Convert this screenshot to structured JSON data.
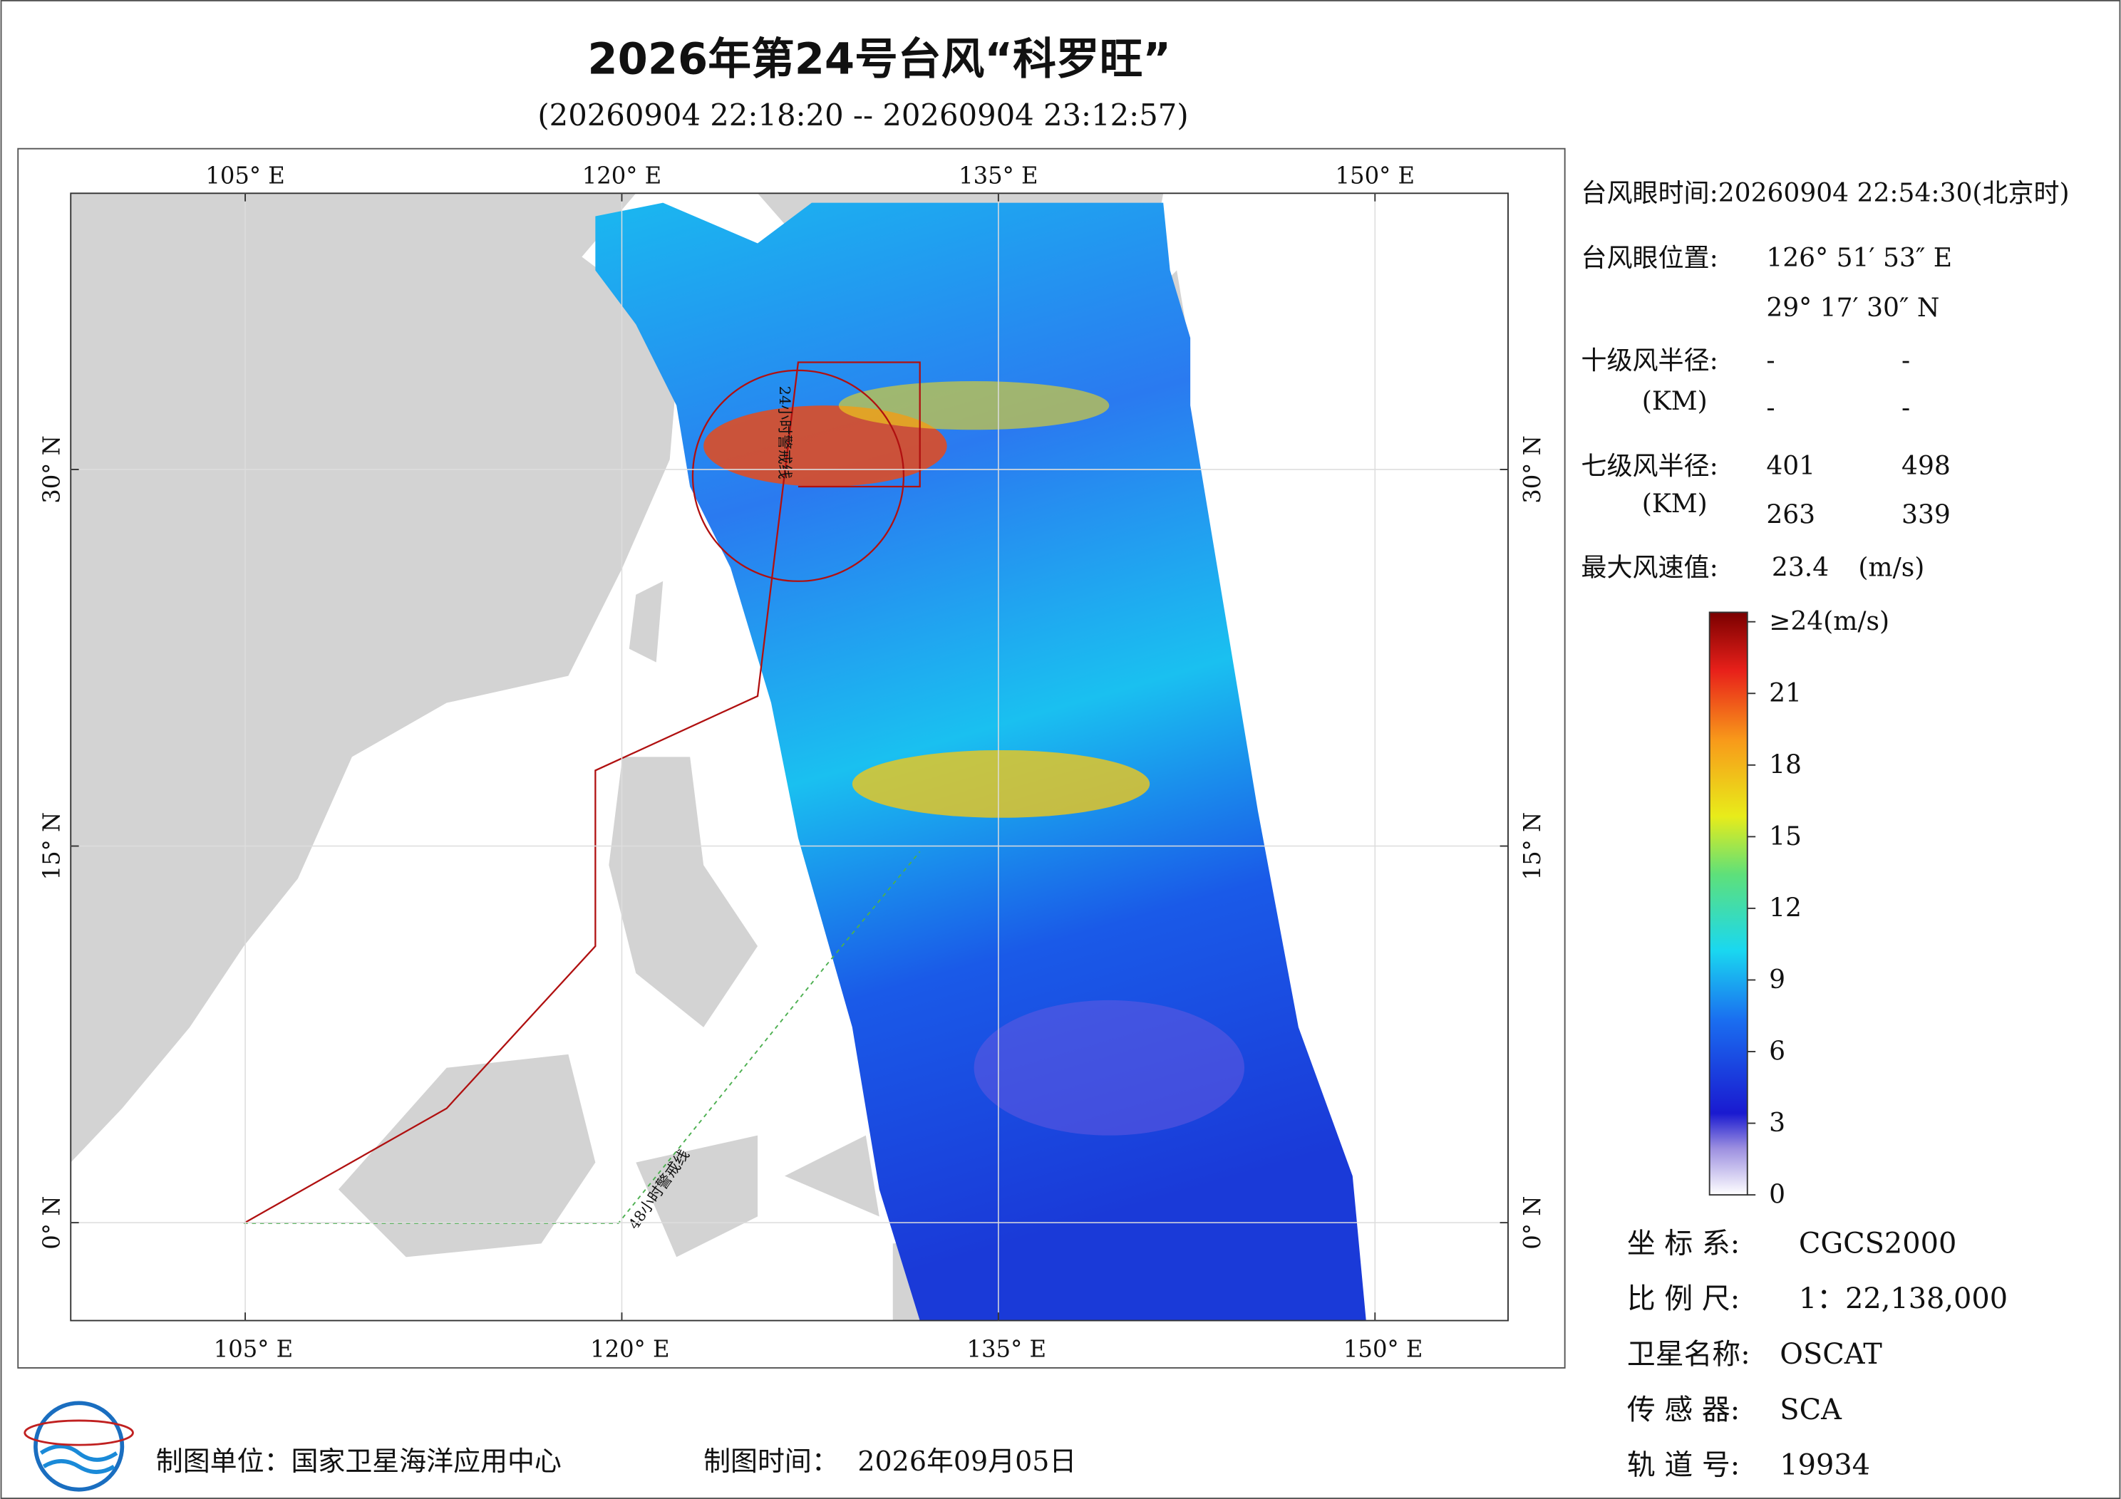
{
  "header": {
    "title": "2026年第24号台风“科罗旺”",
    "subtitle": "(20260904 22:18:20 -- 20260904 23:12:57)"
  },
  "map": {
    "xlim": [
      98.05,
      155.3
    ],
    "ylim": [
      -3.9,
      41
    ],
    "xticks": [
      {
        "value": 105,
        "label": "105° E"
      },
      {
        "value": 120,
        "label": "120° E"
      },
      {
        "value": 135,
        "label": "135° E"
      },
      {
        "value": 150,
        "label": "150° E"
      }
    ],
    "yticks": [
      {
        "value": 0,
        "label": "0° N"
      },
      {
        "value": 15,
        "label": "15° N"
      },
      {
        "value": 30,
        "label": "30° N"
      }
    ],
    "grid": true,
    "annotations": [
      "24小时警戒线",
      "48小时警戒线"
    ]
  },
  "info": {
    "eye_time": "台风眼时间:20260904 22:54:30(北京时)",
    "eye_position": {
      "label": "台风眼位置:",
      "lon": "126° 51′ 53″ E",
      "lat": "29° 17′ 30″ N"
    },
    "radius_10": {
      "label": "十级风半径:",
      "unit": "(KM)",
      "values": [
        "-",
        "-",
        "-",
        "-"
      ]
    },
    "radius_7": {
      "label": "七级风半径:",
      "unit": "(KM)",
      "values": [
        "401",
        "498",
        "263",
        "339"
      ]
    },
    "max_wind": {
      "label": "最大风速值:",
      "value": "23.4",
      "unit": "(m/s)"
    }
  },
  "colorbar": {
    "range": [
      0,
      24
    ],
    "ticks": [
      {
        "value": 24,
        "label": "≥24(m/s)"
      },
      21,
      18,
      15,
      12,
      9,
      6,
      3,
      0
    ]
  },
  "meta": [
    {
      "label": "坐 标 系:",
      "value": "CGCS2000"
    },
    {
      "label": "比 例 尺:",
      "value": "1：22,138,000"
    },
    {
      "label": "卫星名称:",
      "value": "OSCAT"
    },
    {
      "label": "传 感 器:",
      "value": "SCA"
    },
    {
      "label": "轨 道 号:",
      "value": "19934"
    }
  ],
  "footer": {
    "producer": "制图单位：国家卫星海洋应用中心",
    "time_label": "制图时间：",
    "time": "2026年09月05日"
  }
}
